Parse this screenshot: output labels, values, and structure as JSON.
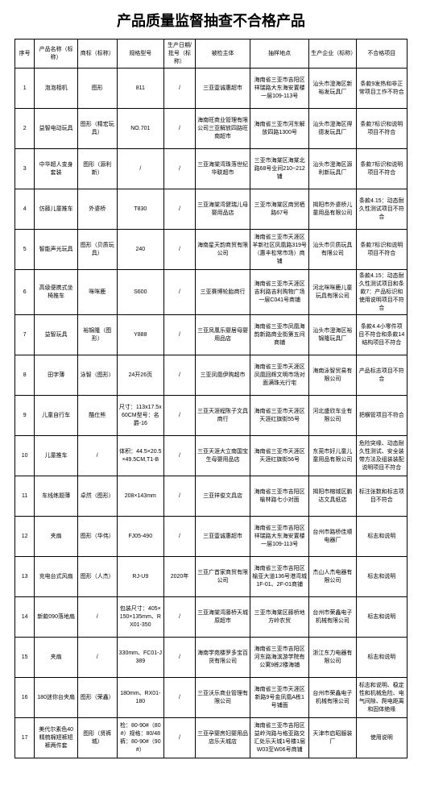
{
  "title": "产品质量监督抽查不合格产品",
  "columns": [
    "序号",
    "产品名称（标称）",
    "商标（标称）",
    "规格型号",
    "生产日期/批号（标称）",
    "被检主体",
    "抽样地点",
    "生产企业（标称）",
    "不合格项目"
  ],
  "rows": [
    [
      "1",
      "泡泡相机",
      "图形",
      "811",
      "/",
      "三亚壹诚惠超市",
      "海南省三亚市吉阳区祥瑞路大东海安置楼一层109-113号",
      "汕头市澄海区新裕发玩具厂",
      "条款9发热和非正常项目工作不符合"
    ],
    [
      "2",
      "益智电动玩具",
      "图形（精宏玩具）",
      "NO.701",
      "/",
      "海南旺商业管理有限公司三亚解放四路旺南超市",
      "海南省三亚市河东解放四路1300号",
      "汕头市澄海区得德发玩具厂",
      "条款7标识和说明项目不符合"
    ],
    [
      "3",
      "中华超人变身套装",
      "图形（源利新）",
      "/",
      "/",
      "三亚海棠湾珠落世纪华联超市",
      "三亚市海棠区海棠北路68号业间210~212铺",
      "汕头市澄海区源利新玩具厂",
      "条款7标识和说明项目不符合"
    ],
    [
      "4",
      "仿藤儿童推车",
      "外婆桥",
      "T830",
      "/",
      "三亚海棠湾健瑞儿母婴用品店",
      "三亚市海棠区商贸栖路67号",
      "揭阳市外婆桥儿童用品有限公司",
      "条款4.15：动态耐久性测试项目不符合"
    ],
    [
      "5",
      "智能声光玩具",
      "图形（贝质玩具）",
      "240",
      "/",
      "海南星天韵商贸有限公司",
      "海南省三亚市天涯区羊新社区凤凰路319号（惠丰松常市场）商铺",
      "汕头市贝质玩具有限公司",
      "条款7标识和说明项目不符合"
    ],
    [
      "6",
      "高级便携式坐椅推车",
      "咪咪鹿",
      "S600",
      "/",
      "三亚赛博轮胎商行",
      "海南省三亚市天涯区吉利路吉利购物广场一层C041号商铺",
      "河北咪咪鹿儿童玩具有限公司",
      "条款4.15：动态耐久性测试项目和条款7：产品标识和使用说明项目不符合"
    ],
    [
      "7",
      "益智玩具",
      "裕锦隆（图形）",
      "Y888",
      "/",
      "三亚凤凰乐婴居母婴用品店",
      "海南省三亚市凤凰海韵新路商业街第五间商铺",
      "汕头市澄海区裕锦隆玩具厂",
      "条款4.4小零件项目不符合和条款14结构项目不符合"
    ],
    [
      "8",
      "田字薄",
      "泳智（图形）",
      "24开26页",
      "/",
      "三亚凤凰伊购超市",
      "海南省三亚市天涯区凤凰回辉文明市场对面满珠光行宅",
      "海南泳智贸易有限公司",
      "产品标志项目不符合"
    ],
    [
      "9",
      "儿童自行车",
      "酷仕熊",
      "尺寸：113x17.5x60CM型号：名爵-16",
      "/",
      "三亚天涯程陈子文具商行",
      "海南省三亚市天涯区天涯红旗街55号",
      "河北盛欣车业有限公司",
      "把横管项目不符合"
    ],
    [
      "10",
      "儿童推车",
      "/",
      "体积：44.5×20.5×49.5CM,T1-B",
      "/",
      "三亚天涯大立南国宝生母婴用品店",
      "海南省三亚市天涯区天涯红旗街56号",
      "东莞市好儿童儿童用品有限公司",
      "危险突缘、动态耐久性测试、安全装带方法及组装装配说明项目不符合"
    ],
    [
      "11",
      "车线练题薄",
      "卓然（图形）",
      "208×143mm",
      "/",
      "三亚祥俊文具店",
      "海南省三亚市吉阳区榆林路七小对面",
      "揭阳市榕城区鹏达文具纸店",
      "标注张数和标志项目不符合"
    ],
    [
      "12",
      "夹扇",
      "图形（华伟）",
      "FJ05-490",
      "/",
      "三亚壹诚惠超市",
      "海南省三亚市吉阳区祥瑞路大东海安置楼一层109-113号",
      "台州市路桥佳顺电器厂",
      "标志和说明"
    ],
    [
      "13",
      "充电台式风扇",
      "图形（人杰）",
      "RJ-U9",
      "2020年",
      "三亚广首家商贸有限公司",
      "海南省三亚市吉阳区榆亚大道136号港湾城1F-01、2F-01商铺",
      "杰山人杰电器有限公司",
      "标志和说明"
    ],
    [
      "14",
      "新款090落地扇",
      "/",
      "包装尺寸：405×150×135mm、RX01-350",
      "/",
      "三亚海棠湾藤桥天城原超市",
      "三亚市海棠区藤桥地方岭农贸",
      "台州市荣鑫电子机械有限公司",
      "标志和说明"
    ],
    [
      "15",
      "夹扇",
      "/",
      "330mm、FC01-J389",
      "/",
      "海南学苑楼罗多宝百货有限公司",
      "海南省三亚市吉阳区河东路海滨游学院有公寓9栋2楼海铺",
      "浙江东力电器有限公司",
      "标志和说明"
    ],
    [
      "16",
      "180迷你台夹扇",
      "图形（荣鑫）",
      "180mm、RX01-180",
      "/",
      "三亚沃乐商业管理有限公司",
      "海南省三亚市天涯区新路9号金凤凰A栋1号铺面",
      "台州市荣鑫电子机械有限公司",
      "标志和说明、稳定性和机械危险、电气间隙、爬电距离和固体绝缘"
    ],
    [
      "17",
      "美代尔素色40精梳棉短裤短裤两件套",
      "图形（贤裤城）",
      "检：80-90#（80#）规格：80/48裤：80-90#（90#）",
      "/",
      "三亚孕婴房妇婴用品店乐天城店",
      "海南省三亚市吉阳区益岭沟路与格亚路交汇处乐天城1号楼1层W03至W06号商铺",
      "天津市启昭服装厂",
      "使用说明"
    ]
  ]
}
